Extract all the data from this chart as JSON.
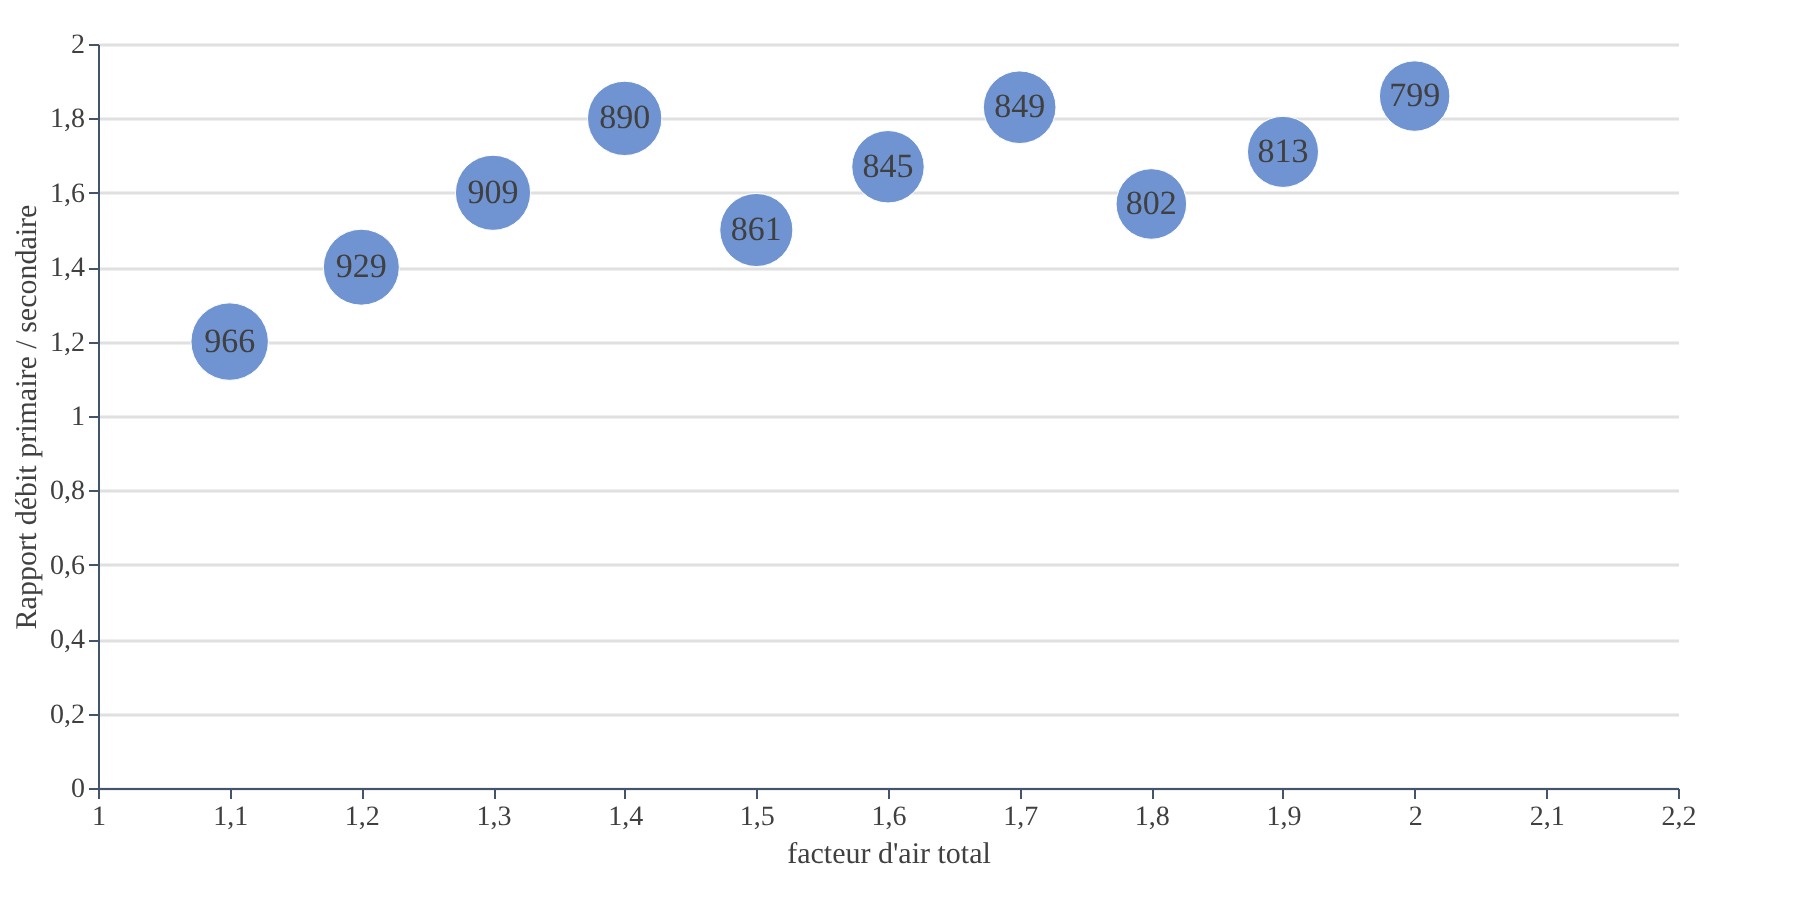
{
  "chart_data": {
    "type": "bubble",
    "xlabel": "facteur d'air total",
    "ylabel": "Rapport débit primaire / secondaire",
    "x": [
      1.1,
      1.2,
      1.3,
      1.4,
      1.5,
      1.6,
      1.7,
      1.8,
      1.9,
      2.0
    ],
    "series": [
      {
        "color": "#6f94d1",
        "values": [
          1.2,
          1.4,
          1.6,
          1.8,
          1.5,
          1.67,
          1.83,
          1.57,
          1.71,
          1.86
        ],
        "sizes": [
          966,
          929,
          909,
          890,
          861,
          845,
          849,
          802,
          813,
          799
        ],
        "value_labels": [
          "966",
          "929",
          "909",
          "890",
          "861",
          "845",
          "849",
          "802",
          "813",
          "799"
        ]
      }
    ],
    "xlim": [
      1,
      2.2
    ],
    "xticks": [
      1,
      {
        "value": 1.1,
        "label": "1,1"
      },
      {
        "value": 1.2,
        "label": "1,2"
      },
      {
        "value": 1.3,
        "label": "1,3"
      },
      {
        "value": 1.4,
        "label": "1,4"
      },
      {
        "value": 1.5,
        "label": "1,5"
      },
      {
        "value": 1.6,
        "label": "1,6"
      },
      {
        "value": 1.7,
        "label": "1,7"
      },
      {
        "value": 1.8,
        "label": "1,8"
      },
      {
        "value": 1.9,
        "label": "1,9"
      },
      2,
      {
        "value": 2.1,
        "label": "2,1"
      },
      {
        "value": 2.2,
        "label": "2,2"
      }
    ],
    "ylim": [
      0,
      2
    ],
    "yticks": [
      0,
      {
        "value": 0.2,
        "label": "0,2"
      },
      {
        "value": 0.4,
        "label": "0,4"
      },
      {
        "value": 0.6,
        "label": "0,6"
      },
      {
        "value": 0.8,
        "label": "0,8"
      },
      1,
      {
        "value": 1.2,
        "label": "1,2"
      },
      {
        "value": 1.4,
        "label": "1,4"
      },
      {
        "value": 1.6,
        "label": "1,6"
      },
      {
        "value": 1.8,
        "label": "1,8"
      },
      2
    ],
    "grid": "y"
  }
}
